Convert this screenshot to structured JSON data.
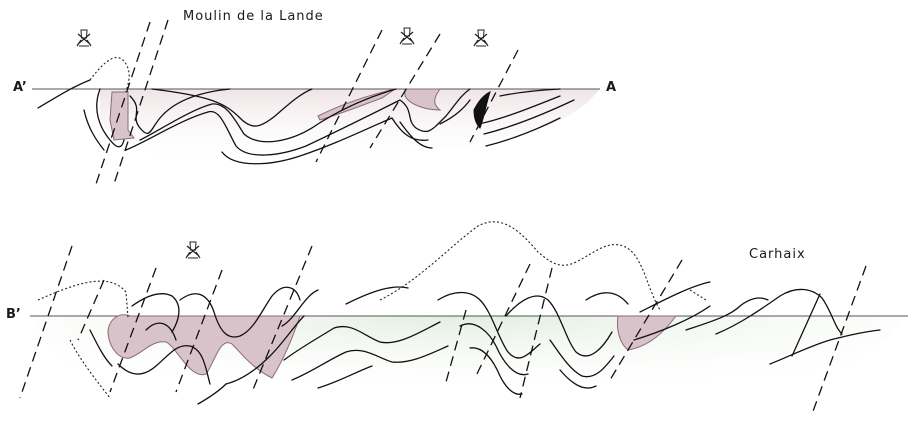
{
  "labels": {
    "place_a": "Moulin de la Lande",
    "place_b": "Carhaix",
    "section_a_left": "A’",
    "section_a_right": "A",
    "section_b_left": "B’"
  },
  "colors": {
    "ore_fill": "#d9c3cb",
    "ore_stroke": "#8a6a73",
    "cover_fill": "#e5efe4",
    "ground_fill": "#f4eeee",
    "line": "#111111"
  },
  "icons": [
    "mine-icon",
    "mine-icon",
    "mine-icon",
    "mine-icon"
  ]
}
